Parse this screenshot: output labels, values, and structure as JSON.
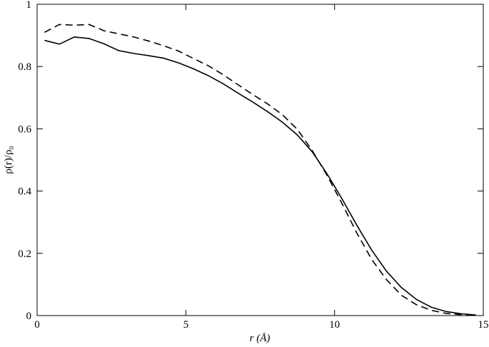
{
  "chart_data": {
    "type": "line",
    "x_label": "r (Å)",
    "y_label": "ρ(r)/ρ₀",
    "x": [
      0.25,
      0.75,
      1.25,
      1.75,
      2.25,
      2.75,
      3.25,
      3.75,
      4.25,
      4.75,
      5.25,
      5.75,
      6.25,
      6.75,
      7.25,
      7.75,
      8.25,
      8.75,
      9.25,
      9.75,
      10.25,
      10.75,
      11.25,
      11.75,
      12.25,
      12.75,
      13.25,
      13.75,
      14.25,
      14.75
    ],
    "series": [
      {
        "color": "#000000",
        "dashed": false,
        "values": [
          0.884,
          0.872,
          0.895,
          0.89,
          0.873,
          0.851,
          0.842,
          0.835,
          0.827,
          0.812,
          0.793,
          0.771,
          0.745,
          0.715,
          0.686,
          0.655,
          0.621,
          0.58,
          0.526,
          0.455,
          0.375,
          0.29,
          0.21,
          0.142,
          0.09,
          0.052,
          0.027,
          0.013,
          0.006,
          0.002
        ]
      },
      {
        "color": "#000000",
        "dashed": true,
        "values": [
          0.91,
          0.935,
          0.933,
          0.935,
          0.915,
          0.905,
          0.895,
          0.882,
          0.867,
          0.85,
          0.826,
          0.803,
          0.774,
          0.742,
          0.71,
          0.68,
          0.645,
          0.598,
          0.53,
          0.45,
          0.36,
          0.265,
          0.18,
          0.115,
          0.065,
          0.035,
          0.017,
          0.007,
          0.003,
          0.001
        ]
      }
    ],
    "xlim": [
      0,
      15
    ],
    "xticks": [
      0,
      5,
      10,
      15
    ],
    "ylim": [
      0,
      1
    ],
    "yticks": [
      0,
      0.2,
      0.4,
      0.6,
      0.8,
      1
    ]
  }
}
